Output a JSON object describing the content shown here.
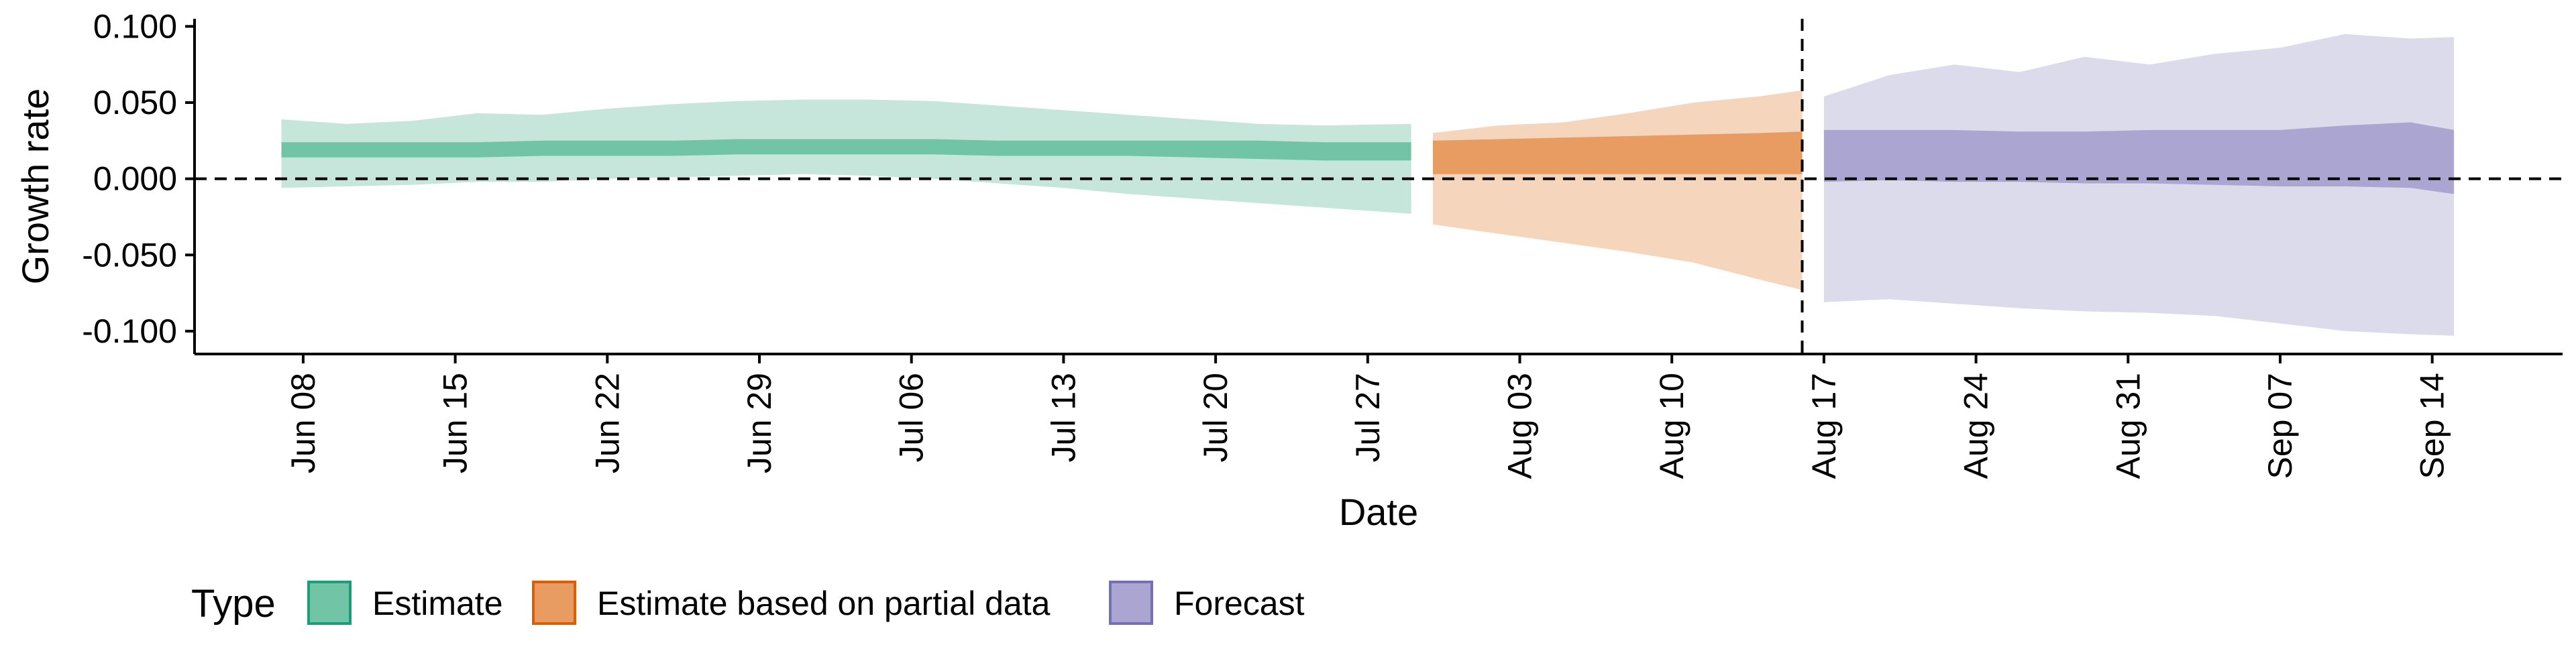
{
  "chart_data": {
    "type": "area",
    "title": "",
    "xlabel": "Date",
    "ylabel": "Growth rate",
    "ylim": [
      -0.115,
      0.105
    ],
    "y_ticks": [
      0.1,
      0.05,
      0.0,
      -0.05,
      -0.1
    ],
    "y_tick_labels": [
      "0.100",
      "0.050",
      "0.000",
      "-0.050",
      "-0.100"
    ],
    "x_range": [
      "2020-06-03",
      "2020-09-20"
    ],
    "x_ticks": [
      "2020-06-08",
      "2020-06-15",
      "2020-06-22",
      "2020-06-29",
      "2020-07-06",
      "2020-07-13",
      "2020-07-20",
      "2020-07-27",
      "2020-08-03",
      "2020-08-10",
      "2020-08-17",
      "2020-08-24",
      "2020-08-31",
      "2020-09-07",
      "2020-09-14"
    ],
    "x_tick_labels": [
      "Jun 08",
      "Jun 15",
      "Jun 22",
      "Jun 29",
      "Jul 06",
      "Jul 13",
      "Jul 20",
      "Jul 27",
      "Aug 03",
      "Aug 10",
      "Aug 17",
      "Aug 24",
      "Aug 31",
      "Sep 07",
      "Sep 14"
    ],
    "reference_lines": {
      "horizontal_y": 0.0,
      "vertical_x": "2020-08-16"
    },
    "grid": false,
    "legend": {
      "title": "Type",
      "position": "bottom",
      "entries": [
        "Estimate",
        "Estimate based on partial data",
        "Forecast"
      ]
    },
    "series": [
      {
        "name": "Estimate",
        "color": "#1b9e77",
        "fill_outer": "#c6e6db",
        "fill_inner": "#72c4a6",
        "x": [
          "2020-06-07",
          "2020-06-10",
          "2020-06-13",
          "2020-06-16",
          "2020-06-19",
          "2020-06-22",
          "2020-06-25",
          "2020-06-28",
          "2020-07-01",
          "2020-07-04",
          "2020-07-07",
          "2020-07-10",
          "2020-07-13",
          "2020-07-16",
          "2020-07-19",
          "2020-07-22",
          "2020-07-25",
          "2020-07-29"
        ],
        "outer_upper": [
          0.039,
          0.036,
          0.038,
          0.043,
          0.042,
          0.046,
          0.049,
          0.051,
          0.052,
          0.052,
          0.051,
          0.048,
          0.045,
          0.042,
          0.039,
          0.036,
          0.035,
          0.036
        ],
        "inner_upper": [
          0.024,
          0.024,
          0.024,
          0.024,
          0.025,
          0.025,
          0.025,
          0.026,
          0.026,
          0.026,
          0.026,
          0.025,
          0.025,
          0.025,
          0.025,
          0.025,
          0.024,
          0.024
        ],
        "median": [
          0.019,
          0.019,
          0.019,
          0.02,
          0.02,
          0.02,
          0.021,
          0.021,
          0.021,
          0.021,
          0.021,
          0.02,
          0.02,
          0.02,
          0.02,
          0.019,
          0.019,
          0.019
        ],
        "inner_lower": [
          0.014,
          0.014,
          0.014,
          0.014,
          0.015,
          0.015,
          0.015,
          0.016,
          0.016,
          0.016,
          0.016,
          0.015,
          0.015,
          0.015,
          0.014,
          0.013,
          0.012,
          0.012
        ],
        "outer_lower": [
          -0.006,
          -0.005,
          -0.004,
          -0.002,
          -0.002,
          0.0,
          0.001,
          0.002,
          0.003,
          0.002,
          0.0,
          -0.003,
          -0.006,
          -0.01,
          -0.013,
          -0.016,
          -0.019,
          -0.023
        ]
      },
      {
        "name": "Estimate based on partial data",
        "color": "#d95f02",
        "fill_outer": "#f6d5bd",
        "fill_inner": "#e89c62",
        "x": [
          "2020-07-30",
          "2020-08-02",
          "2020-08-05",
          "2020-08-08",
          "2020-08-11",
          "2020-08-14",
          "2020-08-16"
        ],
        "outer_upper": [
          0.03,
          0.035,
          0.037,
          0.043,
          0.05,
          0.054,
          0.058
        ],
        "inner_upper": [
          0.025,
          0.026,
          0.027,
          0.028,
          0.029,
          0.03,
          0.031
        ],
        "median": [
          0.016,
          0.017,
          0.017,
          0.018,
          0.018,
          0.018,
          0.018
        ],
        "inner_lower": [
          0.003,
          0.003,
          0.003,
          0.003,
          0.003,
          0.003,
          0.003
        ],
        "outer_lower": [
          -0.03,
          -0.036,
          -0.042,
          -0.048,
          -0.055,
          -0.066,
          -0.073
        ]
      },
      {
        "name": "Forecast",
        "color": "#7570b3",
        "fill_outer": "#dcdbeb",
        "fill_inner": "#aaa6d1",
        "x": [
          "2020-08-17",
          "2020-08-20",
          "2020-08-23",
          "2020-08-26",
          "2020-08-29",
          "2020-09-01",
          "2020-09-04",
          "2020-09-07",
          "2020-09-10",
          "2020-09-13",
          "2020-09-15"
        ],
        "outer_upper": [
          0.054,
          0.068,
          0.075,
          0.07,
          0.08,
          0.075,
          0.082,
          0.086,
          0.095,
          0.092,
          0.093
        ],
        "inner_upper": [
          0.032,
          0.032,
          0.032,
          0.031,
          0.031,
          0.032,
          0.032,
          0.032,
          0.035,
          0.037,
          0.032
        ],
        "median": [
          0.012,
          0.012,
          0.012,
          0.012,
          0.012,
          0.012,
          0.012,
          0.012,
          0.012,
          0.012,
          0.012
        ],
        "inner_lower": [
          -0.002,
          -0.001,
          -0.002,
          -0.002,
          -0.003,
          -0.003,
          -0.004,
          -0.005,
          -0.005,
          -0.006,
          -0.01
        ],
        "outer_lower": [
          -0.081,
          -0.079,
          -0.082,
          -0.085,
          -0.087,
          -0.088,
          -0.09,
          -0.095,
          -0.1,
          -0.102,
          -0.103
        ]
      }
    ]
  }
}
